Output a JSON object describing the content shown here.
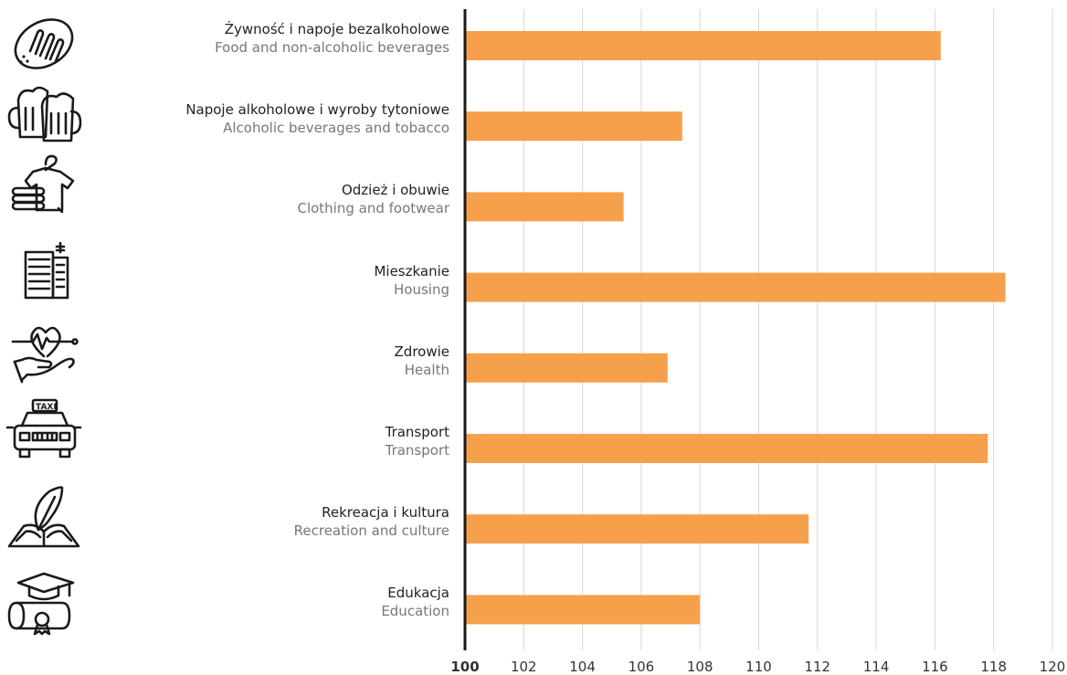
{
  "chart_data": {
    "type": "bar",
    "orientation": "horizontal",
    "title": "",
    "xlabel": "",
    "ylabel": "",
    "xlim": [
      100,
      120
    ],
    "xticks": [
      100,
      102,
      104,
      106,
      108,
      110,
      112,
      114,
      116,
      118,
      120
    ],
    "grid": true,
    "bar_color": "#f7a04b",
    "categories": [
      {
        "pl": "Żywność i napoje bezalkoholowe",
        "en": "Food and non-alcoholic beverages",
        "icon": "bread-icon",
        "value": 116.2
      },
      {
        "pl": "Napoje alkoholowe i wyroby tytoniowe",
        "en": "Alcoholic beverages and tobacco",
        "icon": "beer-mugs-icon",
        "value": 107.4
      },
      {
        "pl": "Odzież i obuwie",
        "en": "Clothing and footwear",
        "icon": "clothing-icon",
        "value": 105.4
      },
      {
        "pl": "Mieszkanie",
        "en": "Housing",
        "icon": "building-icon",
        "value": 118.4
      },
      {
        "pl": "Zdrowie",
        "en": "Health",
        "icon": "health-icon",
        "value": 106.9
      },
      {
        "pl": "Transport",
        "en": "Transport",
        "icon": "taxi-icon",
        "value": 117.8
      },
      {
        "pl": "Rekreacja i kultura",
        "en": "Recreation and culture",
        "icon": "book-feather-icon",
        "value": 111.7
      },
      {
        "pl": "Edukacja",
        "en": "Education",
        "icon": "graduation-icon",
        "value": 108.0
      }
    ],
    "icon_labels": {
      "taxi": "TAXI"
    }
  }
}
